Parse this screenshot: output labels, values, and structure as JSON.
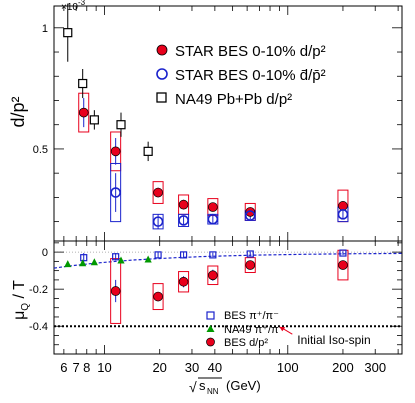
{
  "chart_data": [
    {
      "type": "scatter",
      "ylabel": "d/p²",
      "multiplier_label": "×10",
      "multiplier_exp": "-3",
      "xscale": "log",
      "xlim": [
        5.3,
        420
      ],
      "ylim": [
        0.00012,
        0.00109
      ],
      "yticks": [
        0.0005,
        0.001
      ],
      "ytick_labels": [
        "0.5",
        "1"
      ],
      "legend_position": "top-right",
      "series": [
        {
          "name": "STAR BES 0-10% d/p²",
          "marker": "filled-circle",
          "color": "#e8001c",
          "x": [
            7.7,
            11.5,
            19.6,
            27,
            39,
            62.4,
            200
          ],
          "y": [
            0.00065,
            0.00049,
            0.00032,
            0.00027,
            0.00026,
            0.00024,
            0.000265
          ],
          "err_stat": [
            6e-05,
            5.5e-05,
            2e-05,
            2e-05,
            1.5e-05,
            1.5e-05,
            1.5e-05
          ],
          "sys_box": [
            8e-05,
            8e-05,
            4.5e-05,
            4e-05,
            3.5e-05,
            3.5e-05,
            6.5e-05
          ]
        },
        {
          "name": "STAR BES 0-10% d̄/p̄²",
          "marker": "open-circle",
          "color": "#1a22cc",
          "x": [
            11.5,
            19.6,
            27,
            39,
            62.4,
            200
          ],
          "y": [
            0.00032,
            0.0002,
            0.000205,
            0.00021,
            0.000225,
            0.00023
          ],
          "err_stat": [
            8e-05,
            3e-05,
            2e-05,
            1.5e-05,
            1.5e-05,
            1.5e-05
          ],
          "sys_box": [
            0.00012,
            3e-05,
            2.5e-05,
            2e-05,
            2e-05,
            3e-05
          ]
        },
        {
          "name": "NA49 Pb+Pb d/p²",
          "marker": "open-square",
          "color": "#000000",
          "x": [
            6.3,
            7.6,
            8.8,
            12.3,
            17.3
          ],
          "y": [
            0.00098,
            0.00077,
            0.00062,
            0.0006,
            0.00049
          ],
          "err_stat": [
            0.00012,
            6e-05,
            4e-05,
            5e-05,
            4e-05
          ]
        }
      ]
    },
    {
      "type": "scatter",
      "ylabel": "μQ / T",
      "ylabel_main": "μ",
      "ylabel_sub": "Q",
      "ylabel_tail": " / T",
      "xlabel": "(GeV)",
      "xlabel_sqrt": "s",
      "xlabel_sub": "NN",
      "xscale": "log",
      "xlim": [
        5.3,
        420
      ],
      "ylim": [
        -0.55,
        0.06
      ],
      "yticks": [
        0,
        -0.2,
        -0.4
      ],
      "ytick_labels": [
        "0",
        "-0.2",
        "-0.4"
      ],
      "xticks": [
        6,
        7,
        8,
        10,
        20,
        30,
        40,
        100,
        200,
        300
      ],
      "xtick_labels": [
        "6",
        "7",
        "8",
        "10",
        "20",
        "30",
        "40",
        "100",
        "200",
        "300"
      ],
      "legend_position": "bottom-center",
      "series": [
        {
          "name": "BES π⁺/π⁻",
          "marker": "open-square",
          "color": "#1a22cc",
          "x": [
            7.7,
            11.5,
            19.6,
            27,
            39,
            62.4,
            200
          ],
          "y": [
            -0.03,
            -0.025,
            -0.015,
            -0.015,
            -0.015,
            -0.01,
            -0.005
          ],
          "err": [
            0.025,
            0.02,
            0.015,
            0.015,
            0.012,
            0.012,
            0.01
          ]
        },
        {
          "name": "NA49 π⁺/π⁻",
          "marker": "filled-triangle",
          "color": "#009900",
          "x": [
            6.3,
            7.6,
            8.8,
            12.3,
            17.3
          ],
          "y": [
            -0.065,
            -0.06,
            -0.055,
            -0.045,
            -0.04
          ]
        },
        {
          "name": "BES d/p²",
          "marker": "filled-circle",
          "color": "#e8001c",
          "x": [
            11.5,
            19.6,
            27,
            39,
            62.4,
            200
          ],
          "y": [
            -0.21,
            -0.24,
            -0.16,
            -0.125,
            -0.07,
            -0.07
          ],
          "err_stat": [
            0.06,
            0.025,
            0.03,
            0.03,
            0.025,
            0.025
          ],
          "sys_box": [
            0.175,
            0.07,
            0.055,
            0.05,
            0.04,
            0.08
          ]
        }
      ],
      "reference_lines": [
        {
          "name": "Initial Iso-spin",
          "y": -0.4,
          "style": "dotted",
          "color": "#000000"
        }
      ],
      "annotation": "Initial Iso-spin",
      "annotation_x": 120
    }
  ]
}
